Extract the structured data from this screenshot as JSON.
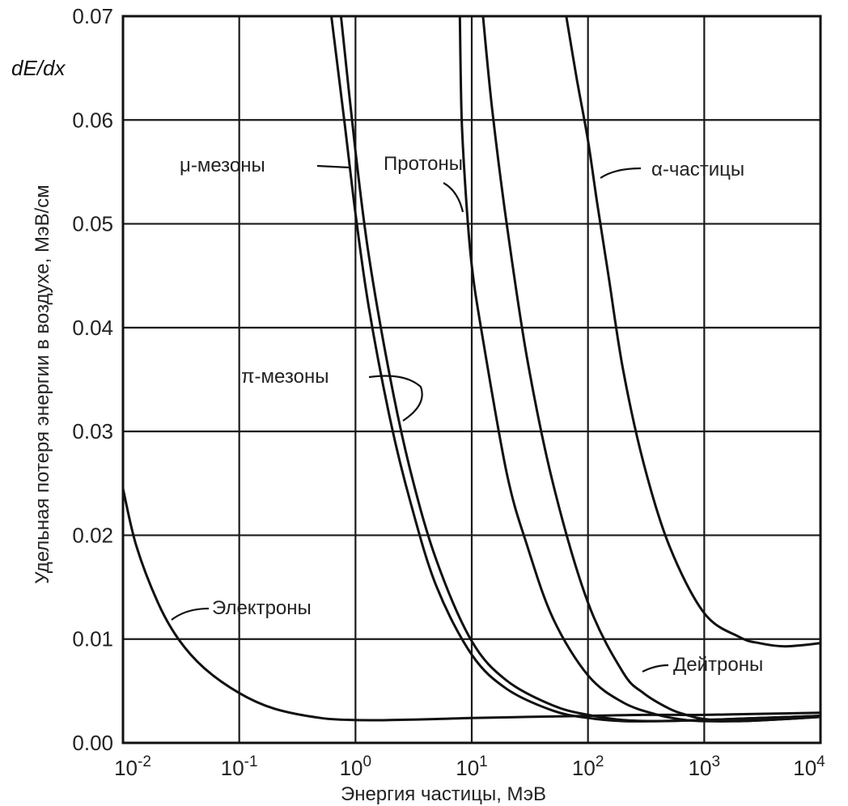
{
  "chart_data": {
    "type": "line",
    "title": "",
    "corner_label": "dE/dx",
    "xlabel": "Энергия частицы, МэВ",
    "ylabel": "Удельная потеря энергии в воздухе, МэВ/см",
    "xscale": "log",
    "xlim": [
      0.01,
      10000
    ],
    "ylim": [
      0,
      0.07
    ],
    "grid": true,
    "x_ticks": [
      {
        "base": "10",
        "exp": "-2",
        "value": 0.01
      },
      {
        "base": "10",
        "exp": "-1",
        "value": 0.1
      },
      {
        "base": "10",
        "exp": "0",
        "value": 1
      },
      {
        "base": "10",
        "exp": "1",
        "value": 10
      },
      {
        "base": "10",
        "exp": "2",
        "value": 100
      },
      {
        "base": "10",
        "exp": "3",
        "value": 1000
      },
      {
        "base": "10",
        "exp": "4",
        "value": 10000
      }
    ],
    "y_ticks": [
      "0.00",
      "0.01",
      "0.02",
      "0.03",
      "0.04",
      "0.05",
      "0.06",
      "0.07"
    ],
    "series": [
      {
        "name": "Электроны",
        "x": [
          0.01,
          0.013,
          0.02,
          0.03,
          0.05,
          0.1,
          0.2,
          0.5,
          1,
          2,
          5,
          10,
          30,
          100,
          300,
          1000,
          3000,
          10000
        ],
        "y": [
          0.0245,
          0.019,
          0.0135,
          0.01,
          0.0072,
          0.0048,
          0.0033,
          0.0024,
          0.0022,
          0.0022,
          0.0023,
          0.0024,
          0.0025,
          0.0026,
          0.0027,
          0.0027,
          0.0028,
          0.0029
        ]
      },
      {
        "name": "μ-мезоны",
        "x": [
          0.62,
          0.8,
          1.0,
          1.3,
          2,
          3,
          5,
          10,
          20,
          50,
          100,
          200,
          400,
          1000,
          3000,
          10000
        ],
        "y": [
          0.07,
          0.06,
          0.051,
          0.042,
          0.031,
          0.023,
          0.015,
          0.0085,
          0.0052,
          0.0031,
          0.0024,
          0.0021,
          0.0021,
          0.0022,
          0.0024,
          0.0026
        ]
      },
      {
        "name": "π-мезоны",
        "x": [
          0.75,
          1.0,
          1.3,
          2,
          3,
          5,
          10,
          20,
          50,
          100,
          200,
          400,
          1000,
          3000,
          10000
        ],
        "y": [
          0.07,
          0.057,
          0.047,
          0.035,
          0.026,
          0.0175,
          0.0098,
          0.006,
          0.0036,
          0.0027,
          0.0022,
          0.0021,
          0.0022,
          0.0024,
          0.0026
        ]
      },
      {
        "name": "Протоны",
        "x": [
          7.9,
          8.2,
          9,
          10,
          12,
          20,
          30,
          50,
          100,
          200,
          400,
          700,
          1000,
          2000,
          5000,
          10000
        ],
        "y": [
          0.07,
          0.06,
          0.052,
          0.046,
          0.04,
          0.026,
          0.019,
          0.012,
          0.0065,
          0.0039,
          0.0027,
          0.0022,
          0.0021,
          0.0021,
          0.0023,
          0.0025
        ]
      },
      {
        "name": "Дейтроны",
        "x": [
          12.5,
          15,
          20,
          30,
          50,
          100,
          200,
          300,
          500,
          700,
          1000,
          2000,
          5000,
          10000
        ],
        "y": [
          0.07,
          0.061,
          0.05,
          0.037,
          0.025,
          0.0135,
          0.0068,
          0.0048,
          0.0033,
          0.0027,
          0.0023,
          0.0021,
          0.0023,
          0.0025
        ]
      },
      {
        "name": "α-частицы",
        "x": [
          65,
          80,
          100,
          120,
          150,
          200,
          300,
          500,
          1000,
          2000,
          3000,
          5000,
          10000
        ],
        "y": [
          0.07,
          0.064,
          0.058,
          0.052,
          0.045,
          0.036,
          0.027,
          0.019,
          0.0125,
          0.0102,
          0.0096,
          0.0093,
          0.0096
        ]
      }
    ],
    "annotations": [
      {
        "text": "μ-мезоны",
        "target": "μ-мезоны"
      },
      {
        "text": "Протоны",
        "target": "Протоны"
      },
      {
        "text": "α-частицы",
        "target": "α-частицы"
      },
      {
        "text": "π-мезоны",
        "target": "π-мезоны"
      },
      {
        "text": "Электроны",
        "target": "Электроны"
      },
      {
        "text": "Дейтроны",
        "target": "Дейтроны"
      }
    ]
  }
}
